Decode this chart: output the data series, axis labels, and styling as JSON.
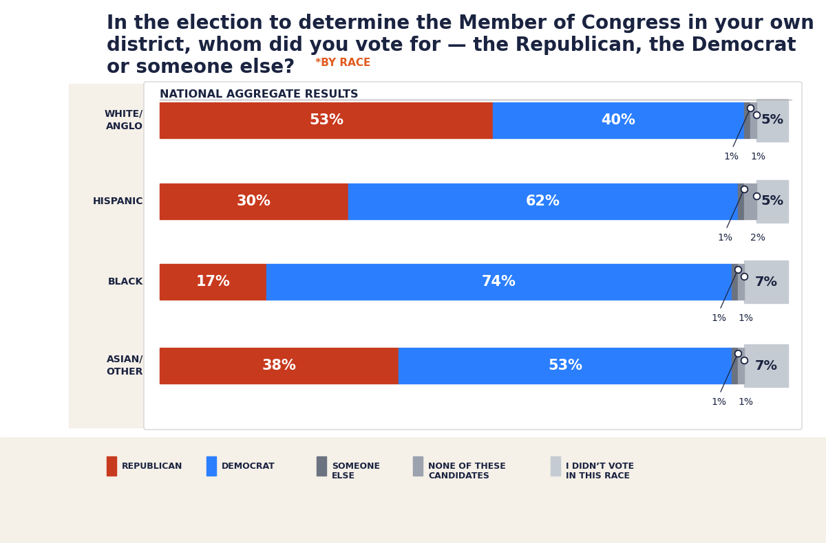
{
  "title_line1": "In the election to determine the Member of Congress in your own",
  "title_line2": "district, whom did you vote for — the Republican, the Democrat",
  "title_line3": "or someone else?",
  "title_suffix": " *BY RACE",
  "subtitle": "NATIONAL AGGREGATE RESULTS",
  "categories": [
    "WHITE/\nANGLO",
    "HISPANIC",
    "BLACK",
    "ASIAN/\nOTHER"
  ],
  "republican": [
    53,
    30,
    17,
    38
  ],
  "democrat": [
    40,
    62,
    74,
    53
  ],
  "someone_else": [
    1,
    1,
    1,
    1
  ],
  "none_of_these": [
    1,
    2,
    1,
    1
  ],
  "didnt_vote": [
    5,
    5,
    7,
    7
  ],
  "color_republican": "#C83A1E",
  "color_democrat": "#2B7FFF",
  "color_someone_else": "#6B7280",
  "color_none": "#9CA3AF",
  "color_didnt_vote": "#C5CBD2",
  "bg_outer": "#F5F0E8",
  "bg_inner": "#FFFFFF",
  "text_dark": "#1A2340",
  "text_orange": "#E05A1E",
  "legend_labels_line1": [
    "REPUBLICAN",
    "DEMOCRAT",
    "SOMEONE",
    "NONE OF THESE",
    "I DIDN’T VOTE"
  ],
  "legend_labels_line2": [
    "",
    "",
    "ELSE",
    "CANDIDATES",
    "IN THIS RACE"
  ]
}
